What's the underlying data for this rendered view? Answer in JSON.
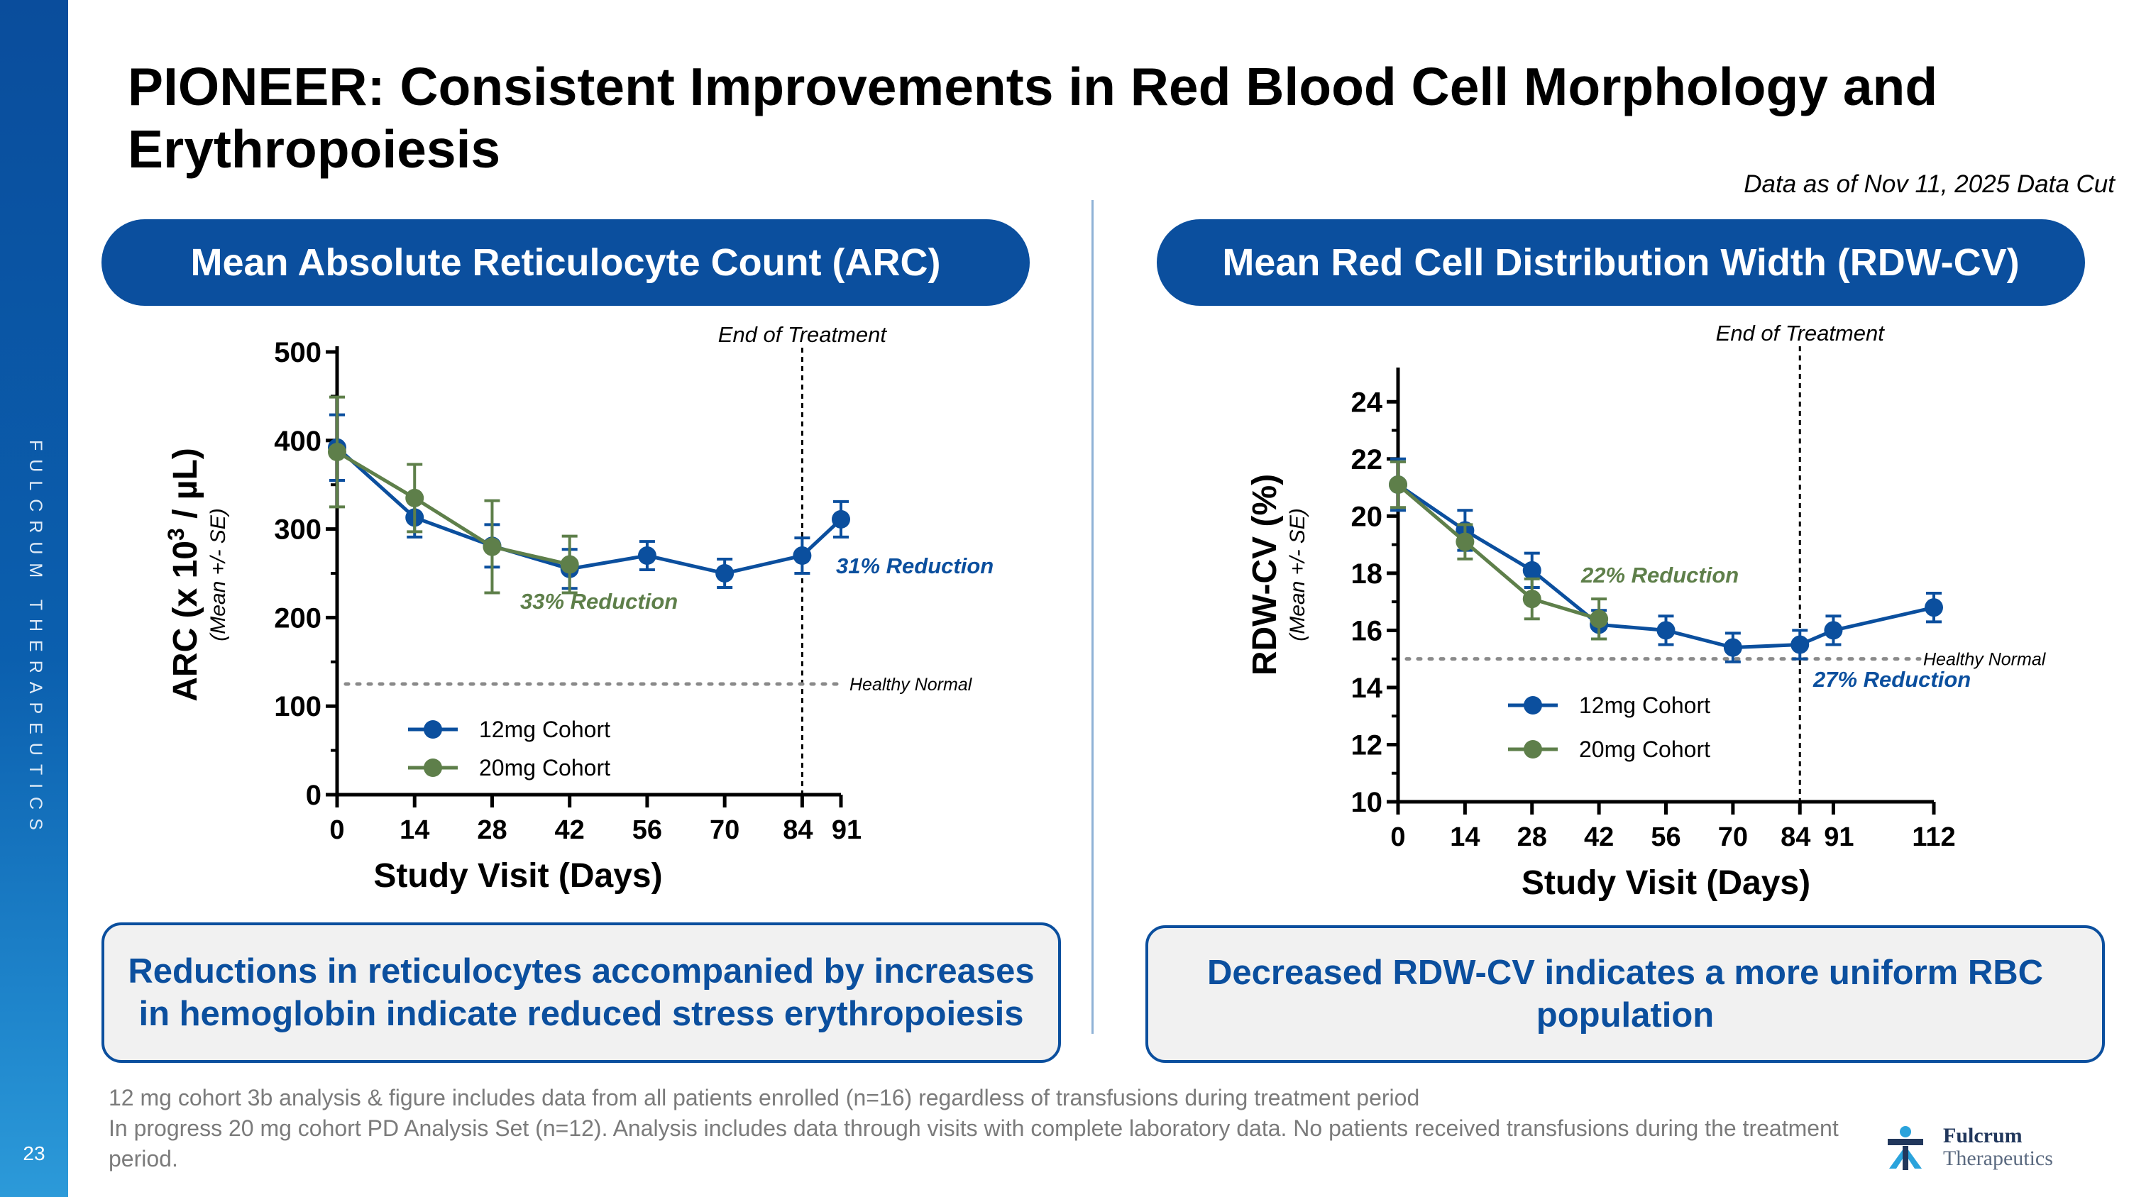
{
  "sidebar": {
    "brand": "FULCRUM THERAPEUTICS",
    "page_number": "23"
  },
  "title": "PIONEER: Consistent Improvements in Red Blood Cell Morphology and Erythropoiesis",
  "data_cut": "Data as of Nov 11, 2025 Data Cut",
  "colors": {
    "brand_blue": "#0b4f9e",
    "series_12mg": "#0b4f9e",
    "series_20mg": "#5e7f4a"
  },
  "left_panel": {
    "pill": "Mean Absolute Reticulocyte Count (ARC)",
    "callout": "Reductions in reticulocytes accompanied by increases in hemoglobin indicate reduced stress erythropoiesis"
  },
  "right_panel": {
    "pill": "Mean Red Cell Distribution Width (RDW-CV)",
    "callout": "Decreased RDW-CV indicates a more uniform RBC population"
  },
  "chart_data": [
    {
      "type": "line",
      "title": "Mean Absolute Reticulocyte Count (ARC)",
      "ylabel_main": "ARC (x 10",
      "ylabel_sup": "3",
      "ylabel_tail": " / µL)",
      "ylabel_sub": "(Mean +/- SE)",
      "xlabel": "Study Visit (Days)",
      "ylim": [
        0,
        500
      ],
      "yticks": [
        "0",
        "100",
        "200",
        "300",
        "400",
        "500"
      ],
      "x_max": 91,
      "xticks": [
        "0",
        "14",
        "28",
        "42",
        "56",
        "70",
        "84",
        "91"
      ],
      "series": [
        {
          "name": "12mg Cohort",
          "x": [
            0,
            14,
            28,
            42,
            56,
            70,
            84,
            91
          ],
          "values": [
            392,
            313,
            281,
            255,
            270,
            250,
            270,
            311
          ],
          "se": [
            37,
            22,
            24,
            22,
            16,
            16,
            20,
            20
          ]
        },
        {
          "name": "20mg Cohort",
          "x": [
            0,
            14,
            28,
            42
          ],
          "values": [
            387,
            335,
            280,
            260
          ],
          "se": [
            62,
            38,
            52,
            32
          ]
        }
      ],
      "end_of_treatment": {
        "x": 84,
        "label": "End of Treatment"
      },
      "healthy_normal": {
        "y": 125,
        "label": "Healthy Normal"
      },
      "annotations": [
        {
          "text": "33% Reduction",
          "series": "20mg Cohort"
        },
        {
          "text": "31% Reduction",
          "series": "12mg Cohort"
        }
      ]
    },
    {
      "type": "line",
      "title": "Mean Red Cell Distribution Width (RDW-CV)",
      "ylabel_main": "RDW-CV (%)",
      "ylabel_sub": "(Mean +/- SE)",
      "xlabel": "Study Visit (Days)",
      "ylim": [
        10,
        25
      ],
      "yticks": [
        "10",
        "12",
        "14",
        "16",
        "18",
        "20",
        "22",
        "24"
      ],
      "x_max": 112,
      "xticks": [
        "0",
        "14",
        "28",
        "42",
        "56",
        "70",
        "84",
        "91",
        "112"
      ],
      "series": [
        {
          "name": "12mg Cohort",
          "x": [
            0,
            14,
            28,
            42,
            56,
            70,
            84,
            91,
            112
          ],
          "values": [
            21.1,
            19.5,
            18.1,
            16.2,
            16.0,
            15.4,
            15.5,
            16.0,
            16.8
          ],
          "se": [
            0.9,
            0.7,
            0.6,
            0.5,
            0.5,
            0.5,
            0.5,
            0.5,
            0.5
          ]
        },
        {
          "name": "20mg Cohort",
          "x": [
            0,
            14,
            28,
            42
          ],
          "values": [
            21.1,
            19.1,
            17.1,
            16.4
          ],
          "se": [
            0.8,
            0.6,
            0.7,
            0.7
          ]
        }
      ],
      "end_of_treatment": {
        "x": 84,
        "label": "End of Treatment"
      },
      "healthy_normal": {
        "y": 15.0,
        "label": "Healthy Normal"
      },
      "annotations": [
        {
          "text": "22% Reduction",
          "series": "20mg Cohort"
        },
        {
          "text": "27% Reduction",
          "series": "12mg Cohort"
        }
      ]
    }
  ],
  "footnotes": [
    "12 mg cohort 3b analysis & figure includes data from all patients enrolled (n=16) regardless of transfusions during treatment period",
    "In progress 20 mg cohort PD Analysis Set (n=12). Analysis includes data through visits with complete laboratory data. No patients received transfusions during the treatment period."
  ],
  "logo": {
    "line1": "Fulcrum",
    "line2": "Therapeutics"
  }
}
